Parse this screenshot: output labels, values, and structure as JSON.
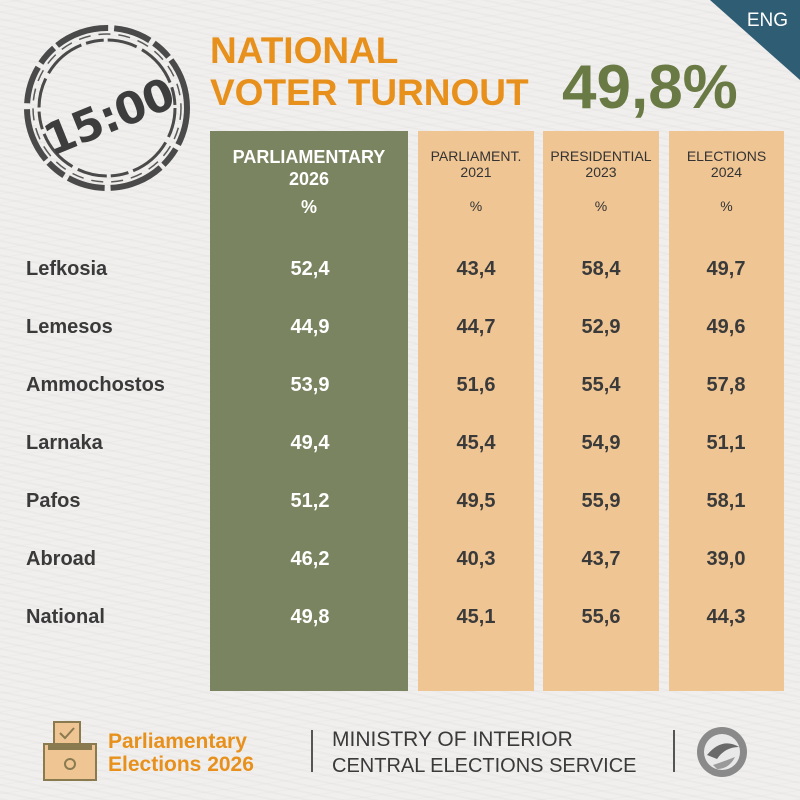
{
  "lang_badge": "ENG",
  "stamp_time": "15:00",
  "title_line1": "NATIONAL",
  "title_line2": "VOTER TURNOUT",
  "national_value": "49,8%",
  "columns": [
    {
      "line1": "PARLIAMENTARY",
      "line2": "2026",
      "unit": "%"
    },
    {
      "line1": "PARLIAMENT.",
      "line2": "2021",
      "unit": "%"
    },
    {
      "line1": "PRESIDENTIAL",
      "line2": "2023",
      "unit": "%"
    },
    {
      "line1": "ELECTIONS",
      "line2": "2024",
      "unit": "%"
    }
  ],
  "rows": [
    {
      "label": "Lefkosia",
      "v2026": "52,4",
      "v2021": "43,4",
      "v2023": "58,4",
      "v2024": "49,7"
    },
    {
      "label": "Lemesos",
      "v2026": "44,9",
      "v2021": "44,7",
      "v2023": "52,9",
      "v2024": "49,6"
    },
    {
      "label": "Ammochostos",
      "v2026": "53,9",
      "v2021": "51,6",
      "v2023": "55,4",
      "v2024": "57,8"
    },
    {
      "label": "Larnaka",
      "v2026": "49,4",
      "v2021": "45,4",
      "v2023": "54,9",
      "v2024": "51,1"
    },
    {
      "label": "Pafos",
      "v2026": "51,2",
      "v2021": "49,5",
      "v2023": "55,9",
      "v2024": "58,1"
    },
    {
      "label": "Abroad",
      "v2026": "46,2",
      "v2021": "40,3",
      "v2023": "43,7",
      "v2024": "39,0"
    },
    {
      "label": "National",
      "v2026": "49,8",
      "v2021": "45,1",
      "v2023": "55,6",
      "v2024": "44,3"
    }
  ],
  "footer": {
    "brand_line1": "Parliamentary",
    "brand_line2": "Elections 2026",
    "ministry_line1": "MINISTRY OF INTERIOR",
    "ministry_line2": "CENTRAL ELECTIONS SERVICE"
  },
  "colors": {
    "accent_orange": "#e8901c",
    "olive_green": "#697a45",
    "main_column": "#7a8460",
    "history_column": "#efc593",
    "corner_blue": "#2f5d74"
  }
}
